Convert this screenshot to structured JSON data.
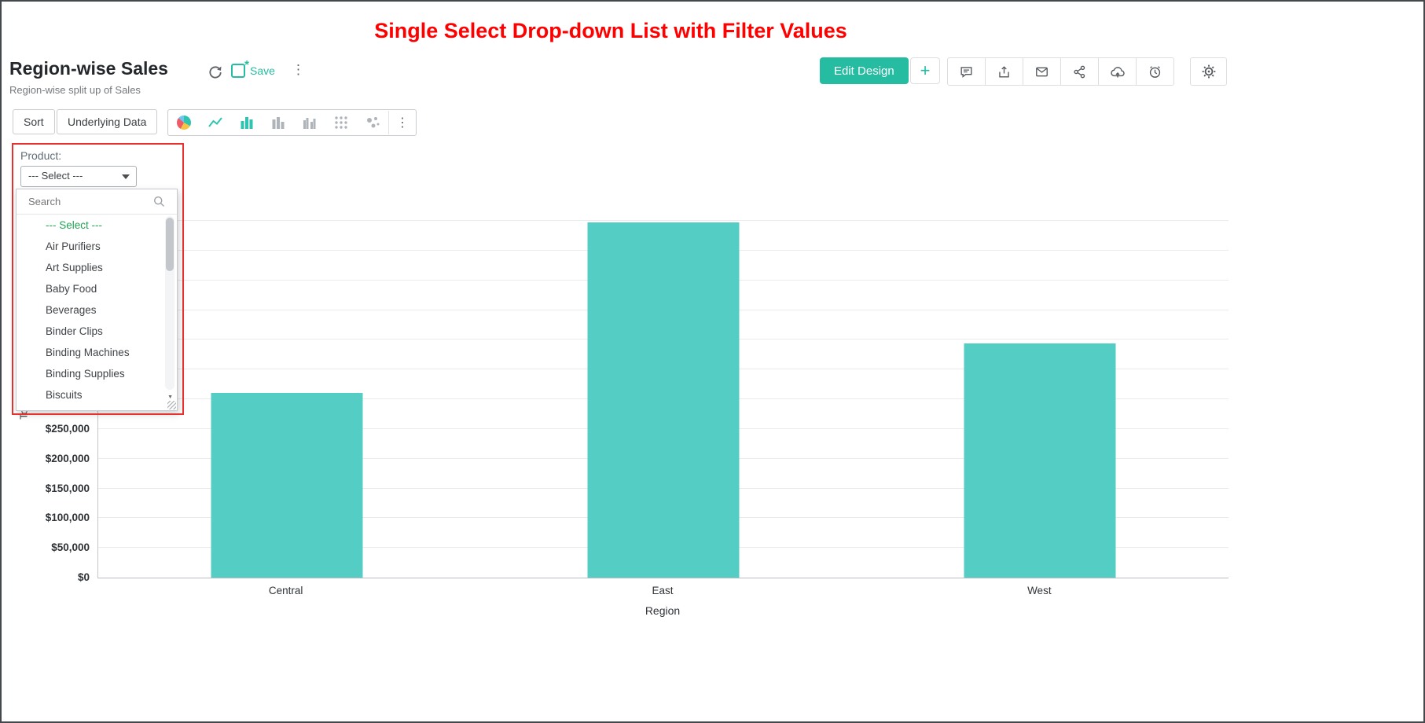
{
  "annotation_title": "Single Select Drop-down List with Filter Values",
  "header": {
    "title": "Region-wise Sales",
    "subtitle": "Region-wise split up of Sales",
    "save_label": "Save",
    "edit_design_label": "Edit Design",
    "add_label": "+"
  },
  "toolbar": {
    "sort_label": "Sort",
    "underlying_data_label": "Underlying Data",
    "chart_types": [
      "pie-chart",
      "line-chart",
      "bar-chart",
      "stacked-bar-chart",
      "grouped-bar-chart",
      "scatter-plot",
      "bubble-chart"
    ],
    "more_icon": "⋮"
  },
  "icons": {
    "more_vertical": "⋮",
    "scroll_down_arrow": "▼",
    "save_unsaved_marker": "*"
  },
  "filter": {
    "label": "Product:",
    "selected_value": "--- Select ---",
    "search_placeholder": "Search",
    "options": [
      "--- Select ---",
      "Air Purifiers",
      "Art Supplies",
      "Baby Food",
      "Beverages",
      "Binder Clips",
      "Binding Machines",
      "Binding Supplies",
      "Biscuits"
    ]
  },
  "chart_data": {
    "type": "bar",
    "title": "Region-wise Sales",
    "categories": [
      "Central",
      "East",
      "West"
    ],
    "values": [
      310000,
      598000,
      394000
    ],
    "xlabel": "Region",
    "ylabel": "Total Sales",
    "ylim": [
      0,
      612000
    ],
    "ytick_step": 50000,
    "ytick_format": "$#,##0",
    "grid": true,
    "legend": "none",
    "bar_color": "#54cec5"
  },
  "colors": {
    "accent_teal": "#26bca2",
    "bar_teal": "#54cec5",
    "annotation_red": "#ff0000",
    "highlight_box_red": "#e8302e",
    "option_green": "#23a455"
  }
}
